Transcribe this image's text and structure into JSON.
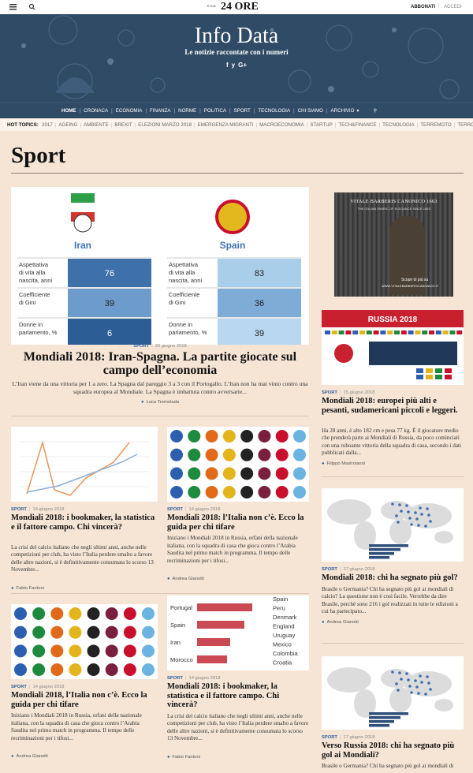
{
  "topbar": {
    "logo_small": "Il Sole",
    "logo": "24 ORE",
    "subscribe": "ABBONATI",
    "login": "ACCEDI"
  },
  "header": {
    "title": "Info Data",
    "subtitle": "Le notizie raccontate con i numeri",
    "social": [
      "f",
      "y",
      "G+"
    ]
  },
  "nav": [
    "HOME",
    "CRONACA",
    "ECONOMIA",
    "FINANZA",
    "NORME",
    "POLITICA",
    "SPORT",
    "TECNOLOGIA",
    "CHI SIAMO",
    "ARCHIVIO"
  ],
  "hot_topics": {
    "label": "HOT TOPICS:",
    "items": [
      "2017",
      "AGEING",
      "AMBIENTE",
      "BREXIT",
      "ELEZIONI MARZO 2018",
      "EMERGENZA MIGRANTI",
      "MACROECONOMIA",
      "STARTUP",
      "TECH&FINANCE",
      "TECNOLOGIA",
      "TERREMOTO",
      "TERRORISMO"
    ]
  },
  "section_title": "Sport",
  "featured": {
    "image": {
      "countries": [
        "Iran",
        "Spain"
      ],
      "rows": [
        "Aspettativa di vita alla nascita, anni",
        "Coefficiente di Gini",
        "Donne in parlamento, %"
      ],
      "values": [
        [
          76,
          39,
          6
        ],
        [
          83,
          36,
          39
        ]
      ]
    },
    "category": "SPORT",
    "date": "20 giugno 2018",
    "title": "Mondiali 2018: Iran-Spagna. La partite giocate sul campo dell’economia",
    "excerpt": "L’Iran viene da una vittoria per 1 a zero. La Spagna dal pareggio 3 a 3 con il Portogallo. L’Iran non ha mai vinto contro una squadra europea al Mondiale. La Spagna è imbattuta contro avversarie...",
    "author": "Luca Tremolada"
  },
  "grid": [
    {
      "category": "SPORT",
      "date": "14 giugno 2018",
      "title": "Mondiali 2018: i bookmaker, la statistica e il fattore campo. Chi vincerà?",
      "excerpt": "La crisi del calcio italiano che negli ultimi anni, anche nelle competizioni per club, ha visto l’Italia perdere smalto a favore delle altre nazioni, si è definitivamente consumata lo scorso 13 Novembre...",
      "author": "Fabio Fantoni"
    },
    {
      "category": "SPORT",
      "date": "14 giugno 2018",
      "title": "Mondiali 2018: l’Italia non c’è. Ecco la guida per chi tifare",
      "excerpt": "Iniziano i Mondiali 2018 in Russia, orfani della nazionale italiana, con la squadra di casa che gioca contro l’Arabia Saudita nel primo match in programma. Il tempo delle recriminazioni per i tifosi...",
      "author": "Andrea Gianotti"
    },
    {
      "category": "SPORT",
      "date": "14 giugno 2018",
      "title": "Mondiali 2018, l’Italia non c’è. Ecco la guida per chi tifare",
      "excerpt": "Iniziano i Mondiali 2018 in Russia, orfani della nazionale italiana, con la squadra di casa che gioca contro l’Arabia Saudita nel primo match in programma. Il tempo delle recriminazioni per i tifosi...",
      "author": "Andrea Gianotti"
    },
    {
      "category": "SPORT",
      "date": "14 giugno 2018",
      "title": "Mondiali 2018: i bookmaker, la statistica e il fattore campo. Chi vincerà?",
      "excerpt": "La crisi del calcio italiano che negli ultimi anni, anche nelle competizioni per club, ha visto l’Italia perdere smalto a favore delle altre nazioni, si è definitivamente consumata lo scorso 13 Novembre...",
      "author": "Fabio Fantoni",
      "image": {
        "labels": [
          "Portugal",
          "Spain",
          "Iran",
          "Morocco"
        ],
        "list": [
          "Spain",
          "Peru",
          "Denmark",
          "England",
          "Uruguay",
          "Mexico",
          "Colombia",
          "Croatia"
        ]
      }
    }
  ],
  "ad": {
    "brand": "VITALE BARBERIS CANONICO 1663",
    "tagline": "THE ITALIAN FABRIC OF ELEGANCE SINCE 1663",
    "cta": "Scopri di più su",
    "url": "WWW.VITALEBARBERISCANONICO.IT"
  },
  "sidebar": [
    {
      "image": {
        "label": "RUSSIA 2018"
      },
      "category": "SPORT",
      "date": "15 giugno 2018",
      "title": "Mondiali 2018: europei più alti e pesanti, sudamericani piccoli e leggeri.",
      "excerpt": "Ha 28 anni, è alto 182 cm e pesa 77 kg. È il giocatore medio che prenderà parte ai Mondiali di Russia, da poco cominciati con una roboante vittoria della squadra di casa, secondo i dati pubblicati dalla...",
      "author": "Filippo Mastroianni"
    },
    {
      "category": "SPORT",
      "date": "17 giugno 2018",
      "title": "Mondiali 2018: chi ha segnato più gol?",
      "excerpt": "Brasile o Germania? Chi ha segnato più gol ai mondiali di calcio? La questione non è così facile. Verrebbe da dire Brasile, perché sono 216 i gol realizzati in tutte le edizioni a cui ha partecipato...",
      "author": "Andrea Gianotti"
    },
    {
      "category": "SPORT",
      "date": "17 giugno 2018",
      "title": "Verso Russia 2018: chi ha segnato più gol ai Mondiali?",
      "excerpt": "Brasile o Germania? Chi ha segnato più gol ai mondiali di"
    }
  ]
}
